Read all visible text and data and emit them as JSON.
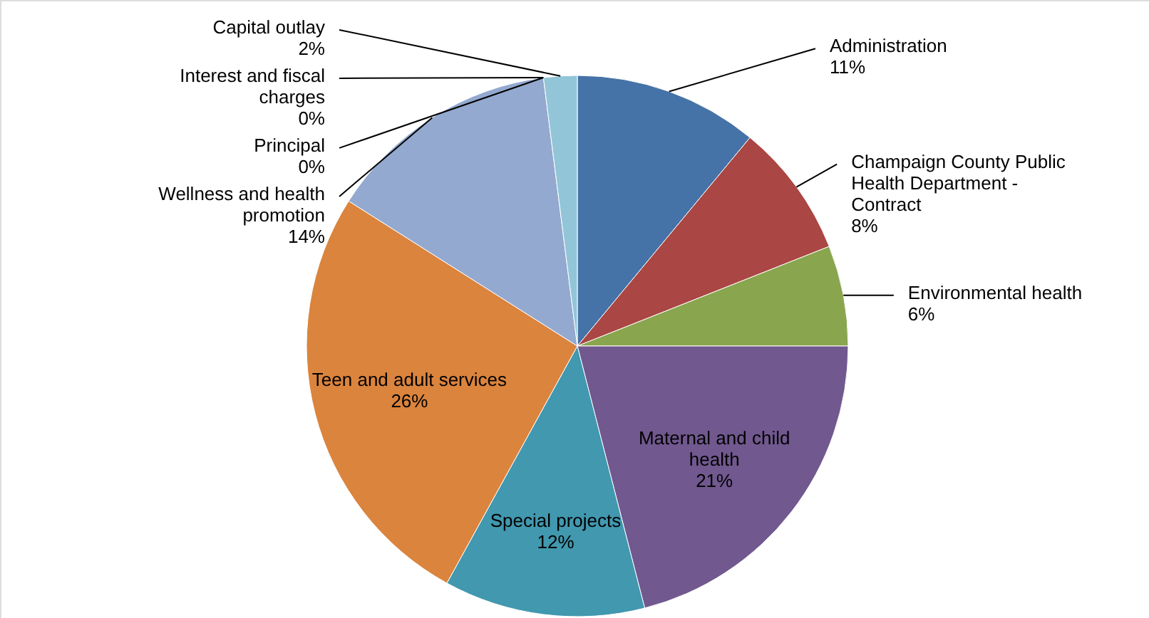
{
  "chart_data": {
    "type": "pie",
    "categories": [
      "Administration",
      "Champaign County Public Health Department - Contract",
      "Environmental health",
      "Maternal and child health",
      "Special projects",
      "Teen and adult services",
      "Wellness and health promotion",
      "Interest and fiscal charges",
      "Principal",
      "Capital outlay"
    ],
    "values": [
      11,
      8,
      6,
      21,
      12,
      26,
      14,
      0,
      0,
      2
    ],
    "colors": [
      "#4572a7",
      "#aa4643",
      "#89a54e",
      "#71588f",
      "#4198af",
      "#db843d",
      "#93a9cf",
      "#d19392",
      "#b9cd96",
      "#92c5d8"
    ],
    "value_labels": [
      "11%",
      "8%",
      "6%",
      "21%",
      "12%",
      "26%",
      "14%",
      "0%",
      "0%",
      "2%"
    ]
  }
}
